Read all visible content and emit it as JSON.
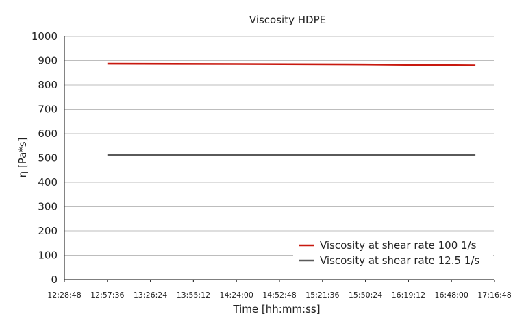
{
  "chart_data": {
    "type": "line",
    "title": "Viscosity HDPE",
    "xlabel": "Time [hh:mm:ss]",
    "ylabel": "η [Pa*s]",
    "ylim": [
      0,
      1000
    ],
    "yticks": [
      "0",
      "100",
      "200",
      "300",
      "400",
      "500",
      "600",
      "700",
      "800",
      "900",
      "1000"
    ],
    "xlim": [
      "12:28:48",
      "17:16:48"
    ],
    "xticks": [
      "12:28:48",
      "12:57:36",
      "13:26:24",
      "13:55:12",
      "14:24:00",
      "14:52:48",
      "15:21:36",
      "15:50:24",
      "16:19:12",
      "16:48:00",
      "17:16:48"
    ],
    "grid": true,
    "legend_position": "bottom-right",
    "series": [
      {
        "name": "Viscosity at shear rate 100 1/s",
        "color": "#c8190f",
        "x": [
          "12:57:36",
          "14:24:00",
          "15:50:24",
          "17:04:00"
        ],
        "values": [
          887,
          886,
          884,
          880
        ]
      },
      {
        "name": "Viscosity at shear rate 12.5 1/s",
        "color": "#5a5a5a",
        "x": [
          "12:57:36",
          "14:24:00",
          "15:50:24",
          "17:04:00"
        ],
        "values": [
          513,
          513,
          512,
          512
        ]
      }
    ]
  }
}
